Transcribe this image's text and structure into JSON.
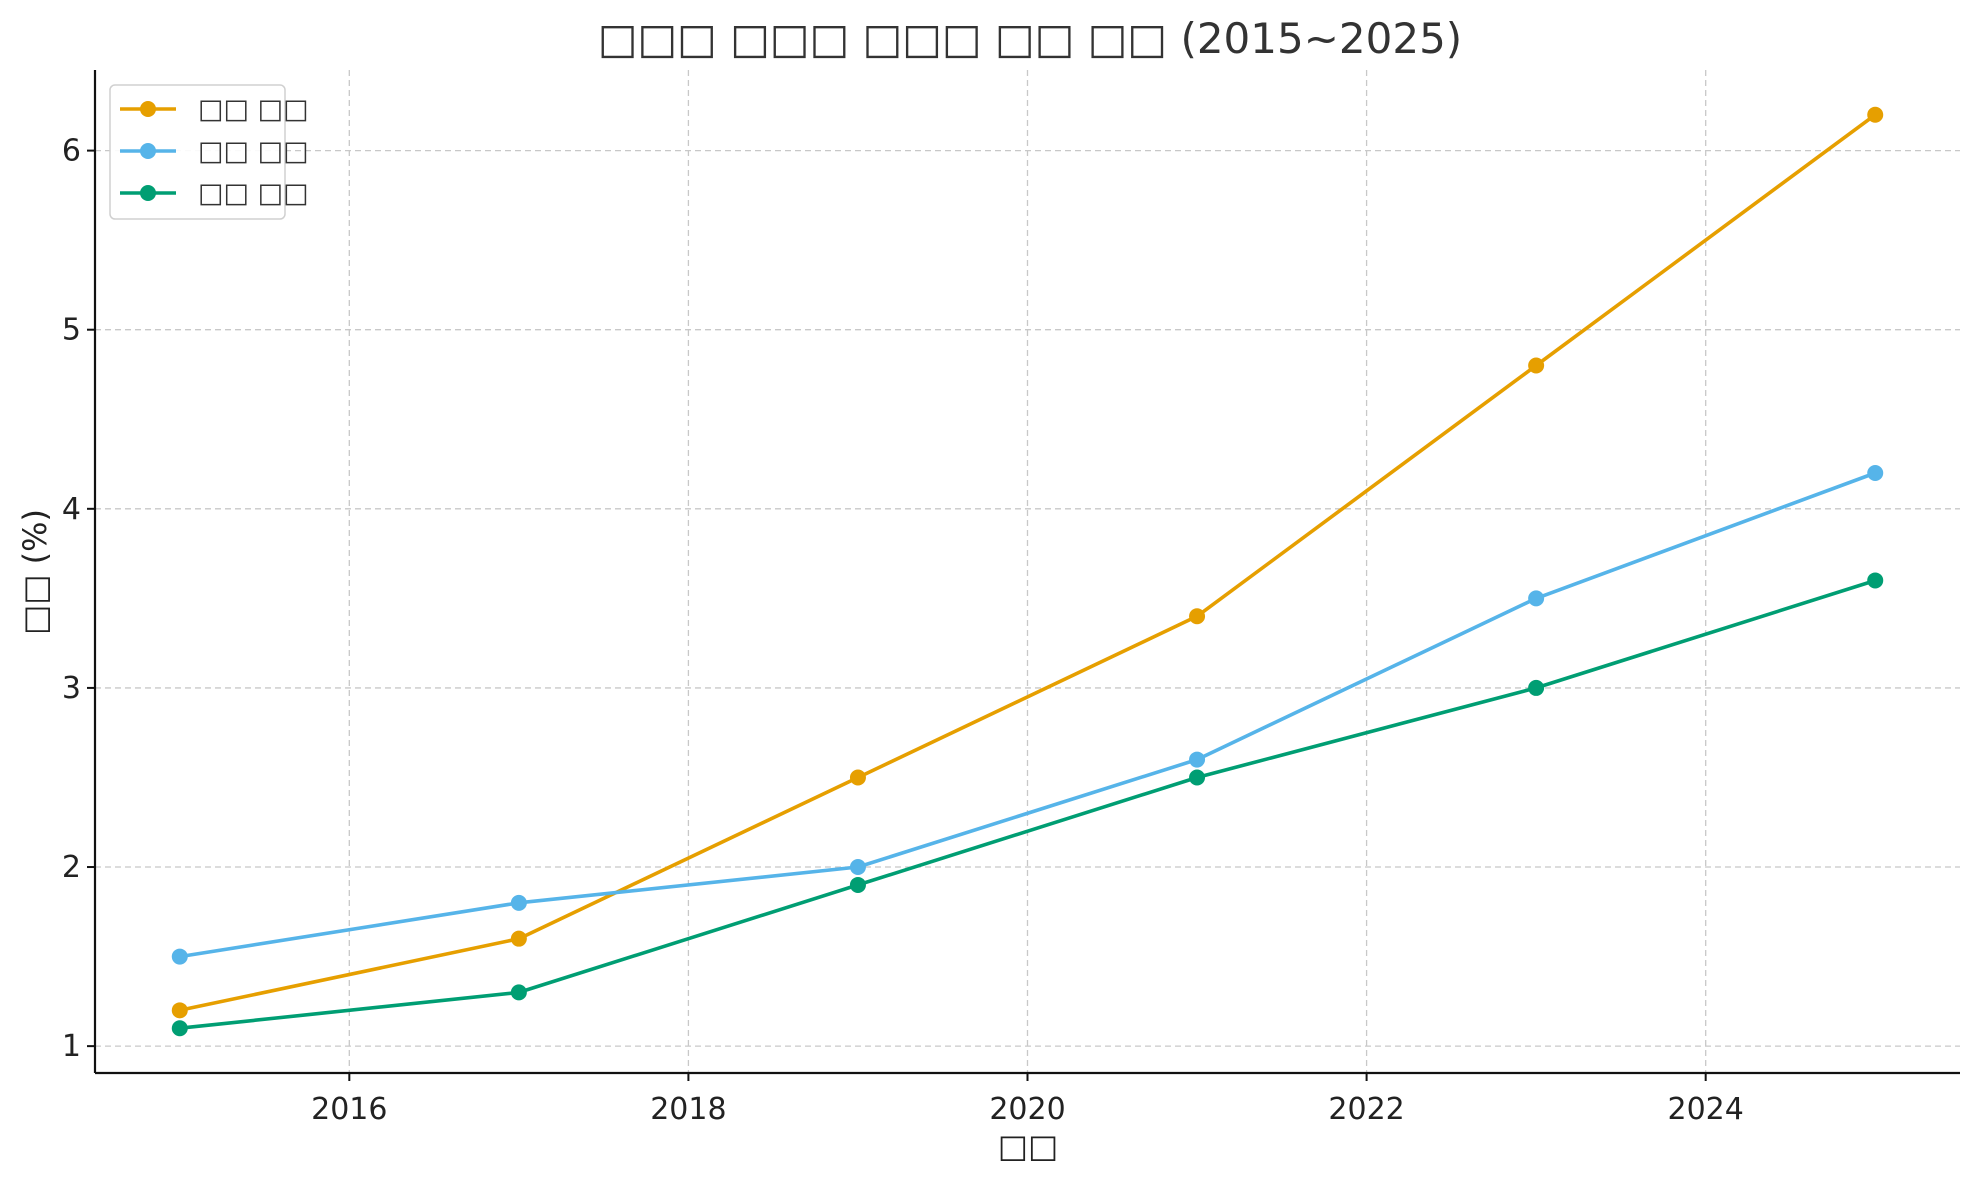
{
  "chart_data": {
    "type": "line",
    "title": "□□□ □□□ □□□ □□ □□ (2015~2025)",
    "xlabel": "□□",
    "ylabel": "□□ (%)",
    "x": [
      2015,
      2017,
      2019,
      2021,
      2023,
      2025
    ],
    "xlim": [
      2014.5,
      2025.5
    ],
    "ylim": [
      0.85,
      6.45
    ],
    "xticks": [
      2016,
      2018,
      2020,
      2022,
      2024
    ],
    "yticks": [
      1,
      2,
      3,
      4,
      5,
      6
    ],
    "grid": true,
    "legend_position": "top-left",
    "series": [
      {
        "name": "□□ □□",
        "color": "#E69F00",
        "values": [
          1.2,
          1.6,
          2.5,
          3.4,
          4.8,
          6.2
        ]
      },
      {
        "name": "□□ □□",
        "color": "#56B4E9",
        "values": [
          1.5,
          1.8,
          2.0,
          2.6,
          3.5,
          4.2
        ]
      },
      {
        "name": "□□ □□",
        "color": "#009E73",
        "values": [
          1.1,
          1.3,
          1.9,
          2.5,
          3.0,
          3.6
        ]
      }
    ]
  }
}
